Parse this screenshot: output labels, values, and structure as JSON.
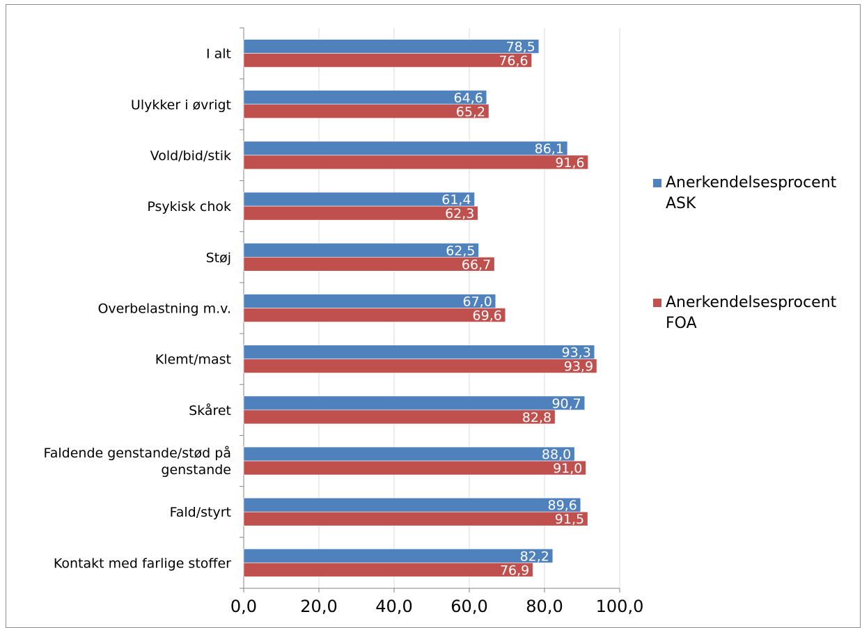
{
  "chart_data": {
    "type": "bar",
    "orientation": "horizontal",
    "categories": [
      "I alt",
      "Ulykker i øvrigt",
      "Vold/bid/stik",
      "Psykisk chok",
      "Støj",
      "Overbelastning m.v.",
      "Klemt/mast",
      "Skåret",
      "Faldende genstande/stød på genstande",
      "Fald/styrt",
      "Kontakt med farlige stoffer"
    ],
    "category_lines": [
      [
        "I alt"
      ],
      [
        "Ulykker i øvrigt"
      ],
      [
        "Vold/bid/stik"
      ],
      [
        "Psykisk chok"
      ],
      [
        "Støj"
      ],
      [
        "Overbelastning m.v."
      ],
      [
        "Klemt/mast"
      ],
      [
        "Skåret"
      ],
      [
        "Faldende genstande/stød på",
        "genstande"
      ],
      [
        "Fald/styrt"
      ],
      [
        "Kontakt med farlige stoffer"
      ]
    ],
    "series": [
      {
        "name": "Anerkendelsesprocent ASK",
        "name_lines": [
          "Anerkendelsesprocent",
          "ASK"
        ],
        "color": "#4F81BD",
        "values": [
          78.5,
          64.6,
          86.1,
          61.4,
          62.5,
          67.0,
          93.3,
          90.7,
          88.0,
          89.6,
          82.2
        ],
        "labels": [
          "78,5",
          "64,6",
          "86,1",
          "61,4",
          "62,5",
          "67,0",
          "93,3",
          "90,7",
          "88,0",
          "89,6",
          "82,2"
        ]
      },
      {
        "name": "Anerkendelsesprocent FOA",
        "name_lines": [
          "Anerkendelsesprocent",
          "FOA"
        ],
        "color": "#C0504D",
        "values": [
          76.6,
          65.2,
          91.6,
          62.3,
          66.7,
          69.6,
          93.9,
          82.8,
          91.0,
          91.5,
          76.9
        ],
        "labels": [
          "76,6",
          "65,2",
          "91,6",
          "62,3",
          "66,7",
          "69,6",
          "93,9",
          "82,8",
          "91,0",
          "91,5",
          "76,9"
        ]
      }
    ],
    "xlim": [
      0,
      100
    ],
    "xticks": [
      0,
      20,
      40,
      60,
      80,
      100
    ],
    "xtick_labels": [
      "0,0",
      "20,0",
      "40,0",
      "60,0",
      "80,0",
      "100,0"
    ],
    "grid": true,
    "legend": "right"
  }
}
